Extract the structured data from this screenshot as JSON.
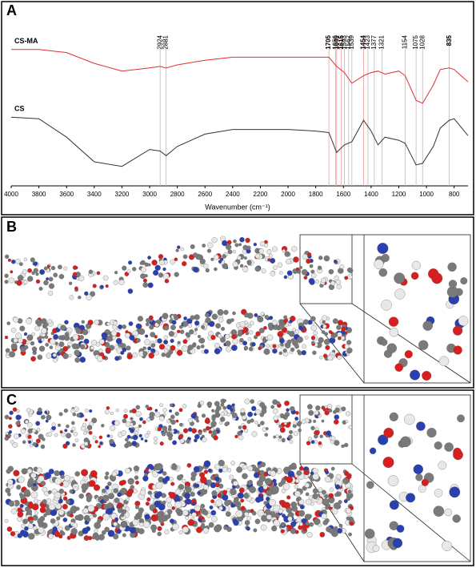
{
  "panel_labels": [
    "A",
    "B",
    "C"
  ],
  "chart_data": {
    "type": "line",
    "xlabel": "Wavenumber (cm⁻¹)",
    "xlim": [
      4000,
      700
    ],
    "xticks": [
      4000,
      3800,
      3600,
      3400,
      3200,
      3000,
      2800,
      2600,
      2400,
      2200,
      2000,
      1800,
      1600,
      1400,
      1200,
      1000,
      800
    ],
    "ylim": [
      0,
      100
    ],
    "x": [
      4000,
      3800,
      3600,
      3400,
      3200,
      3000,
      2924,
      2881,
      2800,
      2600,
      2400,
      2200,
      2000,
      1800,
      1705,
      1649,
      1593,
      1539,
      1454,
      1400,
      1350,
      1300,
      1200,
      1154,
      1075,
      1028,
      950,
      900,
      835,
      800,
      700
    ],
    "series": [
      {
        "name": "CS-MA",
        "color": "#e03030",
        "values": [
          85,
          85,
          83,
          76,
          71,
          73,
          74,
          73,
          75,
          78,
          80,
          80,
          80,
          80,
          80,
          74,
          70,
          63,
          68,
          70,
          71,
          69,
          71,
          68,
          52,
          50,
          62,
          72,
          73,
          72,
          64
        ]
      },
      {
        "name": "CS",
        "color": "#333333",
        "values": [
          41,
          40,
          28,
          12,
          9,
          20,
          19,
          16,
          22,
          30,
          33,
          33,
          33,
          32,
          31,
          18,
          23,
          25,
          39,
          32,
          23,
          28,
          26,
          24,
          10,
          11,
          22,
          34,
          39,
          40,
          29
        ]
      }
    ],
    "peaks": [
      {
        "x": 2924,
        "color": "#000000"
      },
      {
        "x": 2881,
        "color": "#000000"
      },
      {
        "x": 1705,
        "color": "#e03030"
      },
      {
        "x": 1656,
        "color": "#000000"
      },
      {
        "x": 1649,
        "color": "#e03030"
      },
      {
        "x": 1615,
        "color": "#e03030"
      },
      {
        "x": 1593,
        "color": "#000000"
      },
      {
        "x": 1562,
        "color": "#000000"
      },
      {
        "x": 1539,
        "color": "#000000"
      },
      {
        "x": 1454,
        "color": "#e03030"
      },
      {
        "x": 1423,
        "color": "#000000"
      },
      {
        "x": 1377,
        "color": "#000000"
      },
      {
        "x": 1321,
        "color": "#000000"
      },
      {
        "x": 1154,
        "color": "#000000"
      },
      {
        "x": 1075,
        "color": "#000000"
      },
      {
        "x": 1028,
        "color": "#000000"
      },
      {
        "x": 835,
        "color": "#e03030"
      }
    ]
  }
}
